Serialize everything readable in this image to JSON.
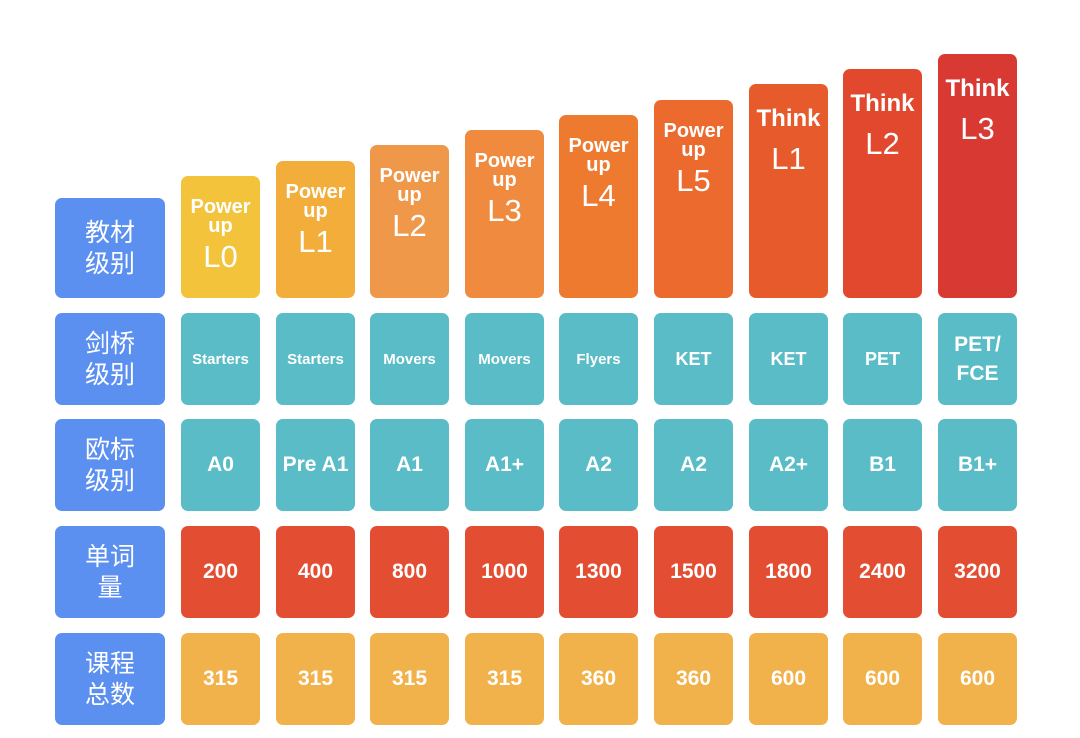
{
  "row_labels": {
    "textbook_level": "教材\n级别",
    "cambridge_level": "剑桥\n级别",
    "cefr_level": "欧标\n级别",
    "vocabulary": "单词量",
    "total_lessons": "课程\n总数"
  },
  "columns": [
    {
      "book_line1": "Power",
      "book_line2": "up",
      "book_level": "L0",
      "cambridge": "Starters",
      "cefr": "A0",
      "words": "200",
      "lessons": "315",
      "color": "#f3c33c"
    },
    {
      "book_line1": "Power",
      "book_line2": "up",
      "book_level": "L1",
      "cambridge": "Starters",
      "cefr": "Pre A1",
      "words": "400",
      "lessons": "315",
      "color": "#f3ad3a"
    },
    {
      "book_line1": "Power",
      "book_line2": "up",
      "book_level": "L2",
      "cambridge": "Movers",
      "cefr": "A1",
      "words": "800",
      "lessons": "315",
      "color": "#f0984a"
    },
    {
      "book_line1": "Power",
      "book_line2": "up",
      "book_level": "L3",
      "cambridge": "Movers",
      "cefr": "A1+",
      "words": "1000",
      "lessons": "315",
      "color": "#f08a3e"
    },
    {
      "book_line1": "Power",
      "book_line2": "up",
      "book_level": "L4",
      "cambridge": "Flyers",
      "cefr": "A2",
      "words": "1300",
      "lessons": "360",
      "color": "#ee7a2f"
    },
    {
      "book_line1": "Power",
      "book_line2": "up",
      "book_level": "L5",
      "cambridge": "KET",
      "cefr": "A2",
      "words": "1500",
      "lessons": "360",
      "color": "#ec6a2e"
    },
    {
      "book_line1": "Think",
      "book_line2": "",
      "book_level": "L1",
      "cambridge": "KET",
      "cefr": "A2+",
      "words": "1800",
      "lessons": "600",
      "color": "#e75a2b"
    },
    {
      "book_line1": "Think",
      "book_line2": "",
      "book_level": "L2",
      "cambridge": "PET",
      "cefr": "B1",
      "words": "2400",
      "lessons": "600",
      "color": "#e2482d"
    },
    {
      "book_line1": "Think",
      "book_line2": "",
      "book_level": "L3",
      "cambridge": "PET/\nFCE",
      "cefr": "B1+",
      "words": "3200",
      "lessons": "600",
      "color": "#d83933"
    }
  ]
}
